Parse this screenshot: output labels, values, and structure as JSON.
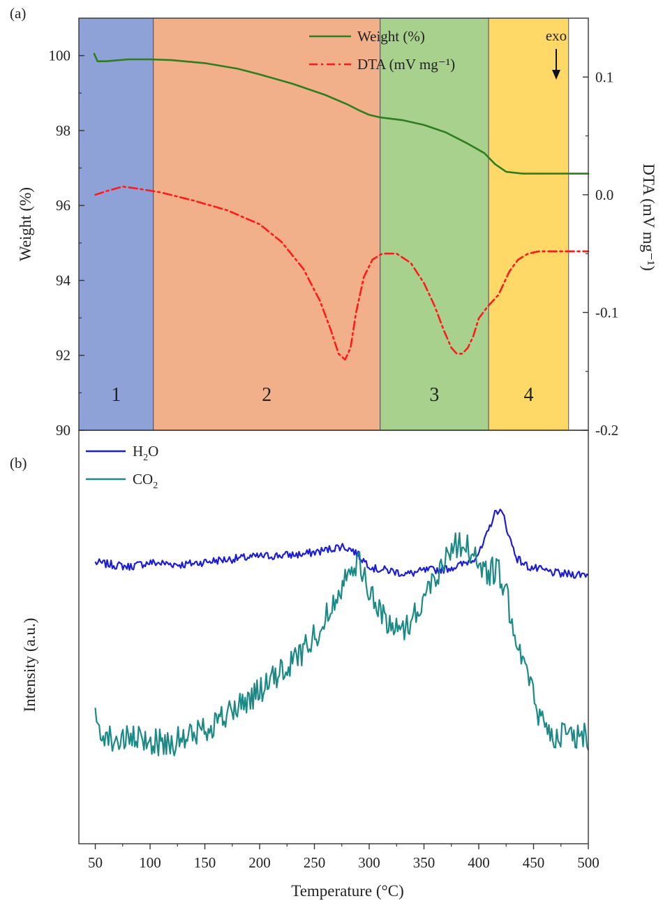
{
  "panels": {
    "a_label": "(a)",
    "b_label": "(b)"
  },
  "annotation": {
    "exo": "exo"
  },
  "chart_data": [
    {
      "type": "line",
      "panel": "(a)",
      "xlim": [
        35,
        500
      ],
      "ylabel": "Weight (%)",
      "ylim": [
        90,
        101
      ],
      "yticks": [
        90,
        92,
        94,
        96,
        98,
        100
      ],
      "y2label": "DTA (mV mg⁻¹)",
      "y2lim": [
        -0.2,
        0.15
      ],
      "y2ticks": [
        -0.2,
        -0.1,
        0.0,
        0.1
      ],
      "y2tick_labels": [
        "-0.2",
        "-0.1",
        "0.0",
        "0.1"
      ],
      "legend_position": "top-right",
      "regions": [
        {
          "label": "1",
          "x0": 35,
          "x1": 103,
          "color": "#8ea2d8"
        },
        {
          "label": "2",
          "x0": 103,
          "x1": 310,
          "color": "#f2b08a"
        },
        {
          "label": "3",
          "x0": 310,
          "x1": 409,
          "color": "#a9d18e"
        },
        {
          "label": "4",
          "x0": 409,
          "x1": 482,
          "color": "#fed967"
        }
      ],
      "series": [
        {
          "name": "Weight (%)",
          "axis": "left",
          "color": "#2e7d1e",
          "style": "solid",
          "x": [
            49,
            52,
            60,
            80,
            100,
            120,
            150,
            180,
            200,
            230,
            260,
            280,
            290,
            300,
            310,
            330,
            350,
            370,
            390,
            405,
            415,
            425,
            440,
            460,
            480,
            500
          ],
          "y": [
            100.05,
            99.85,
            99.85,
            99.9,
            99.9,
            99.88,
            99.8,
            99.65,
            99.5,
            99.25,
            98.95,
            98.7,
            98.55,
            98.42,
            98.35,
            98.28,
            98.15,
            97.95,
            97.65,
            97.4,
            97.1,
            96.9,
            96.85,
            96.85,
            96.85,
            96.85
          ]
        },
        {
          "name": "DTA (mV mg⁻¹)",
          "axis": "right",
          "color": "#ff1a1a",
          "style": "dash-dot",
          "x": [
            50,
            60,
            75,
            90,
            110,
            140,
            170,
            200,
            220,
            240,
            255,
            265,
            272,
            278,
            283,
            288,
            295,
            303,
            312,
            325,
            338,
            350,
            360,
            368,
            375,
            380,
            385,
            390,
            395,
            400,
            408,
            418,
            428,
            436,
            445,
            455,
            470,
            485,
            500
          ],
          "y": [
            0.0,
            0.003,
            0.007,
            0.005,
            0.002,
            -0.005,
            -0.013,
            -0.025,
            -0.04,
            -0.063,
            -0.09,
            -0.115,
            -0.135,
            -0.14,
            -0.13,
            -0.1,
            -0.07,
            -0.055,
            -0.05,
            -0.05,
            -0.058,
            -0.075,
            -0.095,
            -0.115,
            -0.13,
            -0.135,
            -0.135,
            -0.13,
            -0.12,
            -0.105,
            -0.095,
            -0.085,
            -0.065,
            -0.055,
            -0.05,
            -0.048,
            -0.048,
            -0.048,
            -0.048
          ]
        }
      ]
    },
    {
      "type": "line",
      "panel": "(b)",
      "xlabel": "Temperature (°C)",
      "xlim": [
        35,
        500
      ],
      "xticks": [
        50,
        100,
        150,
        200,
        250,
        300,
        350,
        400,
        450,
        500
      ],
      "ylabel": "Intensity (a.u.)",
      "ylim": [
        0,
        1
      ],
      "yticks": [],
      "legend_position": "top-left",
      "series": [
        {
          "name": "H2O",
          "label_main": "H",
          "label_sub": "2",
          "label_tail": "O",
          "color": "#1d1dd6",
          "noise": 0.01,
          "x": [
            50,
            80,
            100,
            130,
            160,
            200,
            240,
            260,
            275,
            285,
            295,
            305,
            320,
            335,
            350,
            370,
            385,
            395,
            402,
            408,
            413,
            418,
            423,
            428,
            435,
            445,
            460,
            475,
            500
          ],
          "y": [
            0.68,
            0.67,
            0.68,
            0.675,
            0.685,
            0.695,
            0.7,
            0.71,
            0.72,
            0.71,
            0.685,
            0.665,
            0.66,
            0.652,
            0.66,
            0.665,
            0.675,
            0.69,
            0.71,
            0.75,
            0.79,
            0.81,
            0.79,
            0.74,
            0.69,
            0.67,
            0.66,
            0.652,
            0.652
          ]
        },
        {
          "name": "CO2",
          "label_main": "CO",
          "label_sub": "2",
          "label_tail": "",
          "color": "#1b8a86",
          "noise": 0.035,
          "x": [
            50,
            60,
            70,
            80,
            95,
            110,
            130,
            150,
            170,
            190,
            210,
            230,
            250,
            265,
            275,
            283,
            290,
            298,
            305,
            315,
            325,
            335,
            345,
            355,
            365,
            375,
            382,
            390,
            398,
            405,
            412,
            418,
            425,
            435,
            445,
            455,
            465,
            480,
            500
          ],
          "y": [
            0.3,
            0.26,
            0.25,
            0.25,
            0.25,
            0.245,
            0.25,
            0.28,
            0.31,
            0.35,
            0.39,
            0.44,
            0.5,
            0.57,
            0.63,
            0.68,
            0.68,
            0.63,
            0.58,
            0.54,
            0.52,
            0.53,
            0.57,
            0.62,
            0.67,
            0.72,
            0.725,
            0.72,
            0.69,
            0.65,
            0.66,
            0.66,
            0.6,
            0.5,
            0.4,
            0.31,
            0.27,
            0.26,
            0.26
          ]
        }
      ]
    }
  ]
}
